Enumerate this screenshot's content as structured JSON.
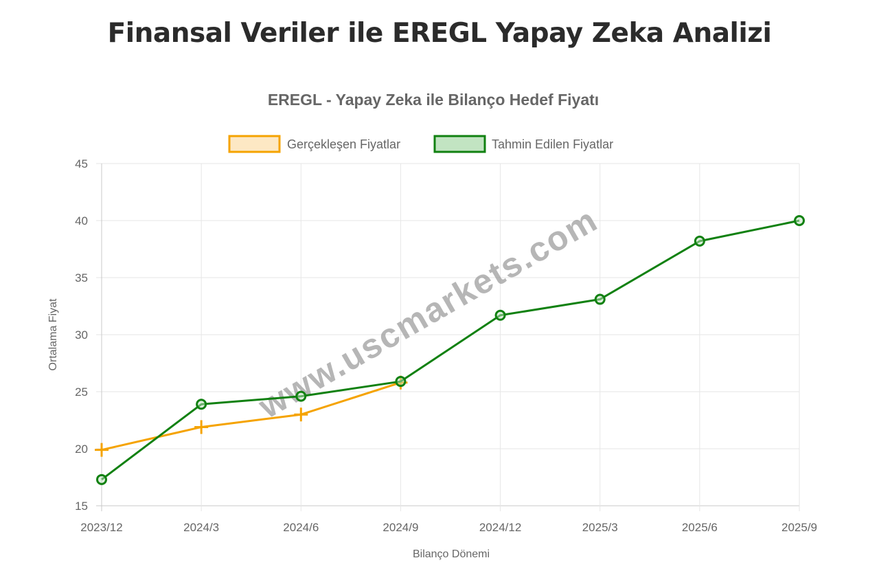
{
  "page": {
    "title": "Finansal Veriler ile EREGL Yapay Zeka Analizi"
  },
  "watermark": "www.uscmarkets.com",
  "chart_data": {
    "type": "line",
    "title": "EREGL - Yapay Zeka ile Bilanço Hedef Fiyatı",
    "xlabel": "Bilanço Dönemi",
    "ylabel": "Ortalama Fiyat",
    "categories": [
      "2023/12",
      "2024/3",
      "2024/6",
      "2024/9",
      "2024/12",
      "2025/3",
      "2025/6",
      "2025/9"
    ],
    "ylim": [
      15,
      45
    ],
    "yticks": [
      15,
      20,
      25,
      30,
      35,
      40,
      45
    ],
    "grid": true,
    "legend_position": "top",
    "series": [
      {
        "name": "Gerçekleşen Fiyatlar",
        "color": "#f5a300",
        "fill": "#fde8c4",
        "marker": "cross",
        "values": [
          19.9,
          21.9,
          23.0,
          25.8,
          null,
          null,
          null,
          null
        ]
      },
      {
        "name": "Tahmin Edilen Fiyatlar",
        "color": "#118111",
        "fill": "#c2e4c2",
        "marker": "circle",
        "values": [
          17.3,
          23.9,
          24.6,
          25.9,
          31.7,
          33.1,
          38.2,
          40.0
        ]
      }
    ]
  }
}
